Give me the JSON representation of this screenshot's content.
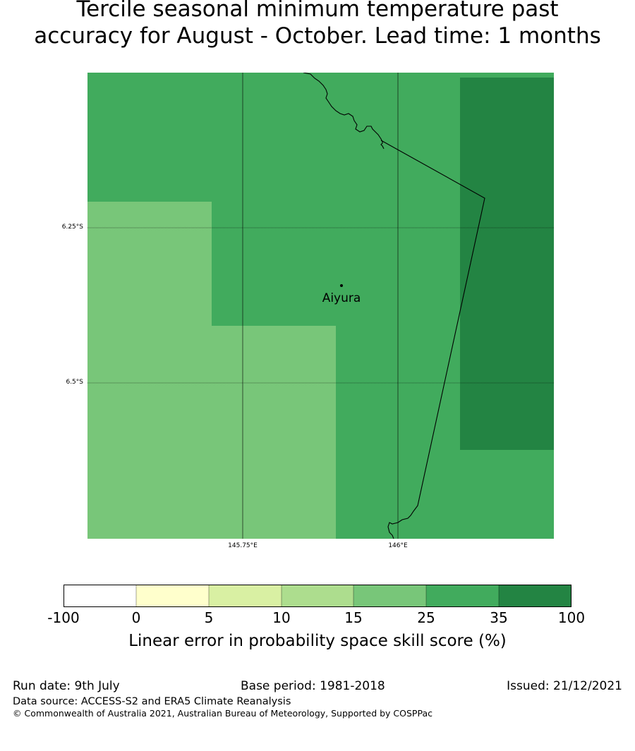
{
  "title_line1": "Tercile seasonal minimum temperature past",
  "title_line2": "accuracy for August - October. Lead time: 1 months",
  "map": {
    "lat_labels": [
      "6.25°S",
      "6.5°S"
    ],
    "lon_labels": [
      "145.75°E",
      "146°E"
    ],
    "place_name": "Aiyura",
    "colors": {
      "cat_15_25": "#78c679",
      "cat_25_35": "#41ab5d",
      "cat_35_100": "#238443"
    }
  },
  "colorbar": {
    "ticks": [
      "-100",
      "0",
      "5",
      "10",
      "15",
      "25",
      "35",
      "100"
    ],
    "colors": [
      "#ffffff",
      "#ffffcc",
      "#d9f0a3",
      "#addd8e",
      "#78c679",
      "#41ab5d",
      "#238443"
    ],
    "label": "Linear error in probability space skill score (%)"
  },
  "footer": {
    "run_date": "Run date: 9th July",
    "base_period": "Base period: 1981-2018",
    "issued": "Issued: 21/12/2021",
    "data_source": "Data source: ACCESS-S2 and ERA5 Climate Reanalysis",
    "copyright": "© Commonwealth of Australia 2021, Australian Bureau of Meteorology, Supported by COSPPac"
  }
}
